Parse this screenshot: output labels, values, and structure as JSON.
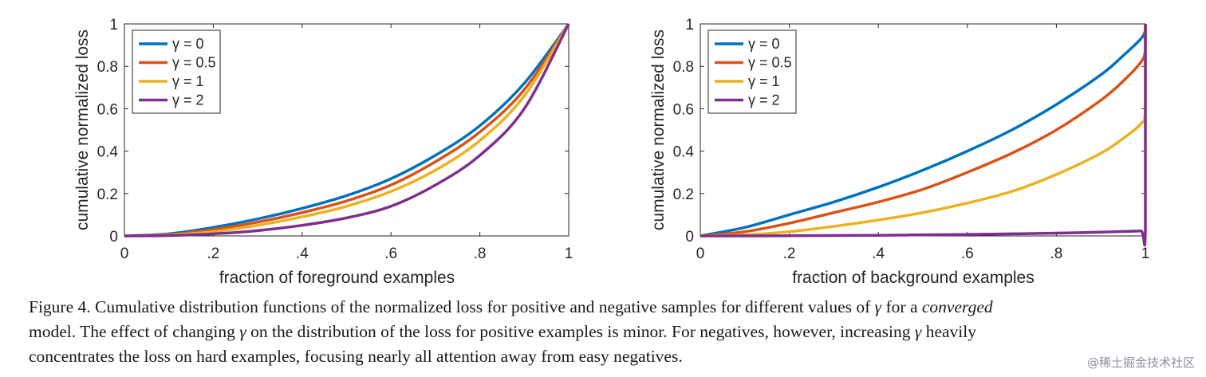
{
  "chart_data": [
    {
      "type": "line",
      "ylabel": "cumulative normalized loss",
      "xlabel": "fraction of foreground examples",
      "xlim": [
        0,
        1
      ],
      "ylim": [
        0,
        1
      ],
      "xticks": [
        {
          "value": 0,
          "label": "0"
        },
        {
          "value": 0.2,
          "label": ".2"
        },
        {
          "value": 0.4,
          "label": ".4"
        },
        {
          "value": 0.6,
          "label": ".6"
        },
        {
          "value": 0.8,
          "label": ".8"
        },
        {
          "value": 1,
          "label": "1"
        }
      ],
      "yticks": [
        {
          "value": 0,
          "label": "0"
        },
        {
          "value": 0.2,
          "label": "0.2"
        },
        {
          "value": 0.4,
          "label": "0.4"
        },
        {
          "value": 0.6,
          "label": "0.6"
        },
        {
          "value": 0.8,
          "label": "0.8"
        },
        {
          "value": 1,
          "label": "1"
        }
      ],
      "grid": false,
      "legend_position": "top-left",
      "x": [
        0,
        0.1,
        0.2,
        0.3,
        0.4,
        0.5,
        0.6,
        0.7,
        0.8,
        0.9,
        1.0
      ],
      "series": [
        {
          "name": "γ = 0",
          "color": "#0072BD",
          "values": [
            0,
            0.01,
            0.04,
            0.08,
            0.13,
            0.19,
            0.27,
            0.38,
            0.52,
            0.72,
            1.0
          ]
        },
        {
          "name": "γ = 0.5",
          "color": "#D95319",
          "values": [
            0,
            0.006,
            0.03,
            0.065,
            0.11,
            0.165,
            0.24,
            0.35,
            0.49,
            0.69,
            1.0
          ]
        },
        {
          "name": "γ = 1",
          "color": "#EDB120",
          "values": [
            0,
            0.004,
            0.02,
            0.05,
            0.09,
            0.14,
            0.21,
            0.31,
            0.45,
            0.66,
            1.0
          ]
        },
        {
          "name": "γ = 2",
          "color": "#7E2F8E",
          "values": [
            0,
            0.002,
            0.01,
            0.025,
            0.05,
            0.085,
            0.14,
            0.24,
            0.38,
            0.6,
            1.0
          ]
        }
      ]
    },
    {
      "type": "line",
      "ylabel": "cumulative normalized loss",
      "xlabel": "fraction of background examples",
      "xlim": [
        0,
        1
      ],
      "ylim": [
        0,
        1
      ],
      "xticks": [
        {
          "value": 0,
          "label": "0"
        },
        {
          "value": 0.2,
          "label": ".2"
        },
        {
          "value": 0.4,
          "label": ".4"
        },
        {
          "value": 0.6,
          "label": ".6"
        },
        {
          "value": 0.8,
          "label": ".8"
        },
        {
          "value": 1,
          "label": "1"
        }
      ],
      "yticks": [
        {
          "value": 0,
          "label": "0"
        },
        {
          "value": 0.2,
          "label": "0.2"
        },
        {
          "value": 0.4,
          "label": "0.4"
        },
        {
          "value": 0.6,
          "label": "0.6"
        },
        {
          "value": 0.8,
          "label": "0.8"
        },
        {
          "value": 1,
          "label": "1"
        }
      ],
      "grid": false,
      "legend_position": "top-left",
      "x": [
        0,
        0.1,
        0.2,
        0.3,
        0.4,
        0.5,
        0.6,
        0.7,
        0.8,
        0.9,
        0.95,
        0.99,
        1.0,
        1.0
      ],
      "series": [
        {
          "name": "γ = 0",
          "color": "#0072BD",
          "values": [
            0,
            0.04,
            0.1,
            0.16,
            0.23,
            0.31,
            0.4,
            0.5,
            0.62,
            0.76,
            0.85,
            0.93,
            0.97,
            1.0
          ]
        },
        {
          "name": "γ = 0.5",
          "color": "#D95319",
          "values": [
            0,
            0.02,
            0.06,
            0.11,
            0.16,
            0.22,
            0.3,
            0.39,
            0.5,
            0.64,
            0.73,
            0.82,
            0.88,
            1.0
          ]
        },
        {
          "name": "γ = 1",
          "color": "#EDB120",
          "values": [
            0,
            0.005,
            0.02,
            0.045,
            0.075,
            0.11,
            0.155,
            0.21,
            0.29,
            0.39,
            0.46,
            0.53,
            0.6,
            1.0
          ]
        },
        {
          "name": "γ = 2",
          "color": "#7E2F8E",
          "values": [
            0,
            0.0,
            0.001,
            0.002,
            0.003,
            0.005,
            0.007,
            0.01,
            0.013,
            0.018,
            0.021,
            0.024,
            0.03,
            1.0
          ]
        }
      ]
    }
  ],
  "caption": {
    "line1_prefix": "Figure 4. Cumulative distribution functions of the normalized loss for positive and negative samples for different values of ",
    "gamma": "γ",
    "line1_middle": " for a ",
    "line1_emph": "converged",
    "line2_prefix": "model. The effect of changing ",
    "line2_middle": " on the distribution of the loss for positive examples is minor. For negatives, however, increasing ",
    "line2_suffix": " heavily",
    "line3": "concentrates the loss on hard examples, focusing nearly all attention away from easy negatives."
  },
  "watermark": "@稀土掘金技术社区"
}
